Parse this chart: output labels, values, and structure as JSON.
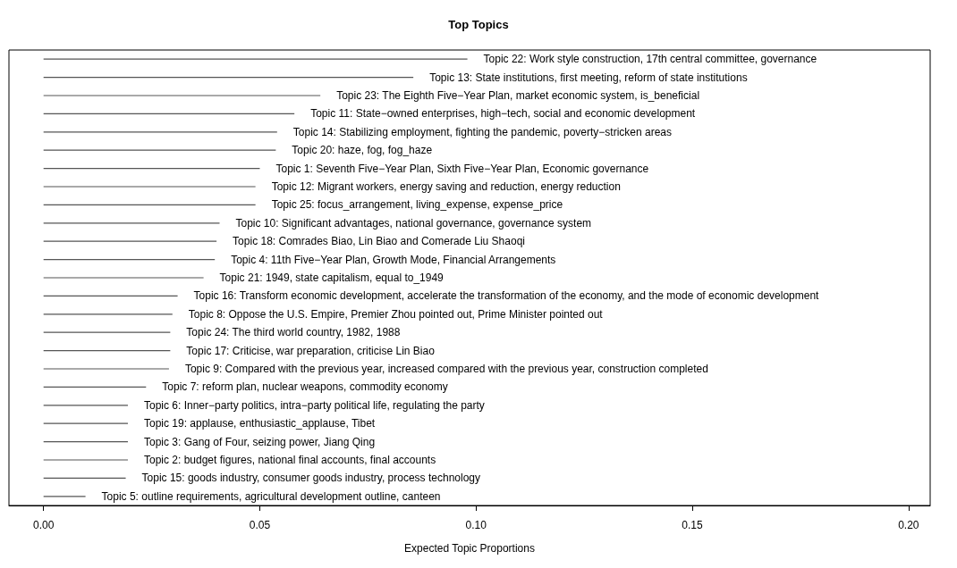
{
  "chart_data": {
    "type": "bar",
    "orientation": "horizontal",
    "title": "Top Topics",
    "xlabel": "Expected Topic Proportions",
    "categories": [
      "Topic 22: Work style construction, 17th central committee, governance",
      "Topic 13: State institutions, first meeting, reform of state institutions",
      "Topic 23: The Eighth Five−Year Plan, market economic system, is_beneficial",
      "Topic 11: State−owned enterprises, high−tech, social and economic development",
      "Topic 14: Stabilizing employment, fighting the pandemic, poverty−stricken areas",
      "Topic 20: haze, fog, fog_haze",
      "Topic 1: Seventh Five−Year Plan, Sixth Five−Year Plan, Economic governance",
      "Topic 12: Migrant workers, energy saving and reduction, energy reduction",
      "Topic 25: focus_arrangement, living_expense, expense_price",
      "Topic 10: Significant advantages, national governance, governance system",
      "Topic 18: Comrades Biao, Lin Biao and Comerade Liu Shaoqi",
      "Topic 4: 11th Five−Year Plan, Growth Mode, Financial Arrangements",
      "Topic 21: 1949, state capitalism, equal to_1949",
      "Topic 16: Transform economic development, accelerate the transformation of the economy, and the mode of economic development",
      "Topic 8: Oppose the U.S. Empire, Premier Zhou pointed out, Prime Minister pointed out",
      "Topic 24: The third world country, 1982, 1988",
      "Topic 17: Criticise, war preparation, criticise Lin Biao",
      "Topic 9: Compared with the previous year, increased compared with the previous year, construction completed",
      "Topic 7: reform plan, nuclear weapons, commodity economy",
      "Topic 6: Inner−party politics, intra−party political life, regulating the party",
      "Topic 19: applause, enthusiastic_applause, Tibet",
      "Topic 3: Gang of Four, seizing power, Jiang Qing",
      "Topic 2: budget figures, national final accounts, final accounts",
      "Topic 15: goods industry, consumer goods industry, process technology",
      "Topic 5: outline requirements, agricultural development outline, canteen"
    ],
    "values": [
      0.098,
      0.0855,
      0.064,
      0.058,
      0.054,
      0.0537,
      0.05,
      0.049,
      0.049,
      0.0407,
      0.04,
      0.0396,
      0.037,
      0.031,
      0.0298,
      0.0293,
      0.0293,
      0.029,
      0.0237,
      0.0195,
      0.0195,
      0.0195,
      0.0195,
      0.019,
      0.0097
    ],
    "color": "#555555",
    "xlim": [
      -0.008,
      0.205
    ],
    "xticks": [
      {
        "value": 0,
        "label": "0.00"
      },
      {
        "value": 0.05,
        "label": "0.05"
      },
      {
        "value": 0.1,
        "label": "0.10"
      },
      {
        "value": 0.15,
        "label": "0.15"
      },
      {
        "value": 0.2,
        "label": "0.20"
      }
    ],
    "tick_labels": "x"
  }
}
